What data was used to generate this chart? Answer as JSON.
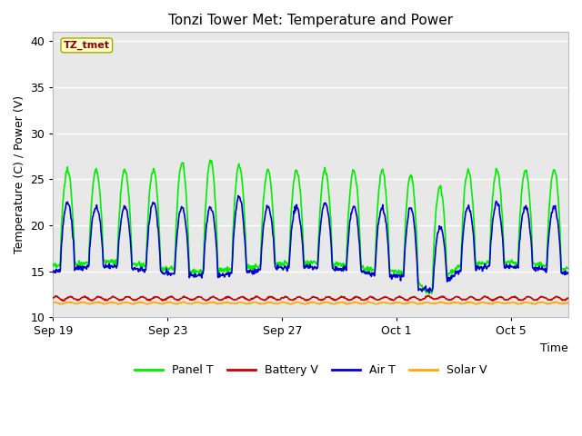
{
  "title": "Tonzi Tower Met: Temperature and Power",
  "xlabel": "Time",
  "ylabel": "Temperature (C) / Power (V)",
  "ylim": [
    10,
    41
  ],
  "yticks": [
    10,
    15,
    20,
    25,
    30,
    35,
    40
  ],
  "plot_bg_color": "#e8e8e8",
  "fig_bg_color": "#ffffff",
  "grid_color": "#ffffff",
  "annotation_text": "TZ_tmet",
  "annotation_color": "#8b0000",
  "annotation_bg": "#ffffcc",
  "annotation_edge": "#aaaa00",
  "legend_items": [
    {
      "label": "Panel T",
      "color": "#00ee00",
      "lw": 1.2
    },
    {
      "label": "Battery V",
      "color": "#cc0000",
      "lw": 1.2
    },
    {
      "label": "Air T",
      "color": "#0000cc",
      "lw": 1.2
    },
    {
      "label": "Solar V",
      "color": "#ffaa00",
      "lw": 1.2
    }
  ],
  "x_tick_labels": [
    "Sep 19",
    "Sep 23",
    "Sep 27",
    "Oct 1",
    "Oct 5"
  ],
  "x_tick_positions": [
    0,
    4,
    8,
    12,
    16
  ],
  "total_days": 18
}
